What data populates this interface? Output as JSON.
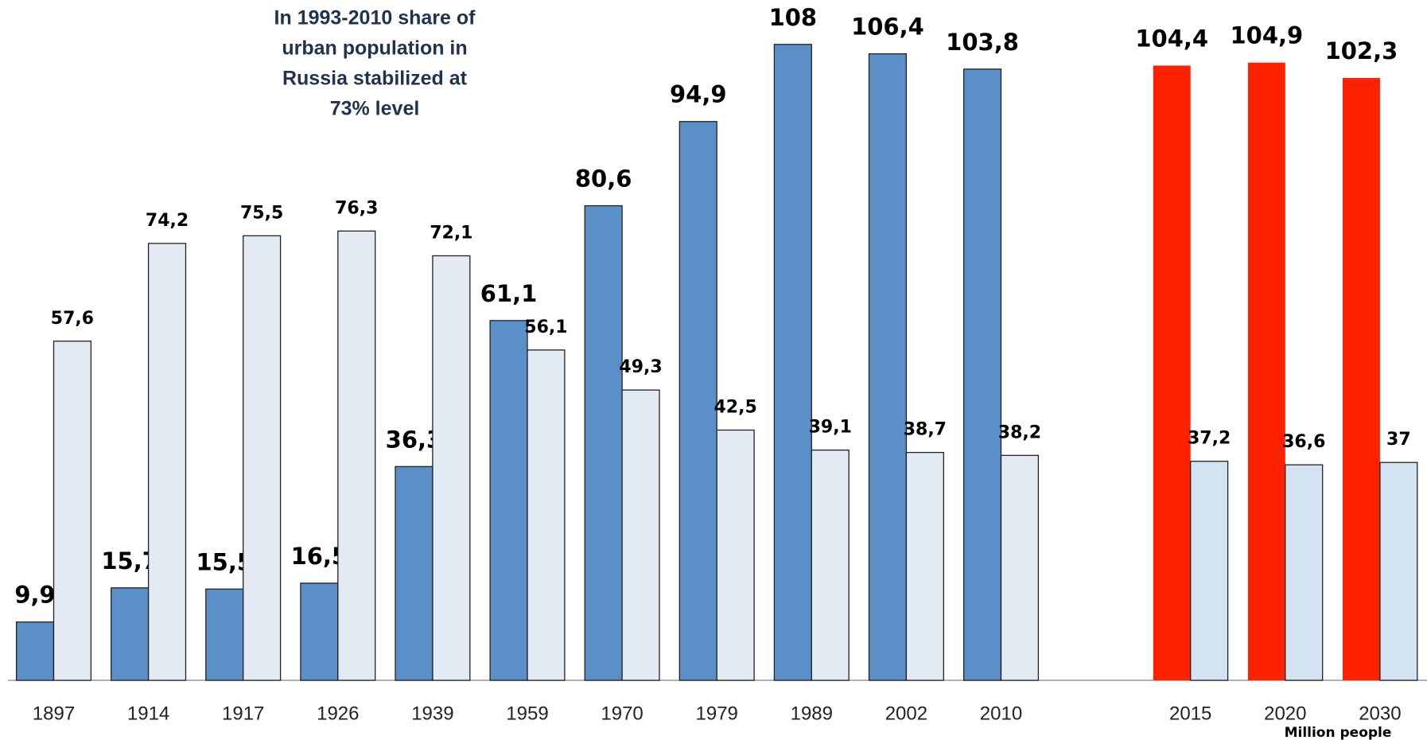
{
  "chart_data": {
    "type": "bar",
    "annotation": [
      "In 1993-2010 share of",
      "urban population in",
      "Russia stabilized at",
      "73% level"
    ],
    "unit_label": "Million people",
    "categories": [
      "1897",
      "1914",
      "1917",
      "1926",
      "1939",
      "1959",
      "1970",
      "1979",
      "1989",
      "2002",
      "2010",
      null,
      "2015",
      "2020",
      "2030"
    ],
    "series": [
      {
        "colors": [
          "#5b8fc7",
          "#5b8fc7",
          "#5b8fc7",
          "#5b8fc7",
          "#5b8fc7",
          "#5b8fc7",
          "#5b8fc7",
          "#5b8fc7",
          "#5b8fc7",
          "#5b8fc7",
          "#5b8fc7",
          null,
          "#ff2200",
          "#ff2200",
          "#ff2200"
        ],
        "values": [
          9.9,
          15.7,
          15.5,
          16.5,
          36.3,
          61.1,
          80.6,
          94.9,
          108,
          106.4,
          103.8,
          null,
          104.4,
          104.9,
          102.3
        ],
        "value_labels": [
          "9,9",
          "15,7",
          "15,5",
          "16,5",
          "36,3",
          "61,1",
          "80,6",
          "94,9",
          "108",
          "106,4",
          "103,8",
          null,
          "104,4",
          "104,9",
          "102,3"
        ]
      },
      {
        "colors": [
          "#e3eaf4",
          "#e3eaf4",
          "#e3eaf4",
          "#e3eaf4",
          "#e3eaf4",
          "#e3eaf4",
          "#e3eaf4",
          "#e3eaf4",
          "#e3eaf4",
          "#e3eaf4",
          "#e3eaf4",
          null,
          "#d3e3f2",
          "#d3e3f2",
          "#d3e3f2"
        ],
        "values": [
          57.6,
          74.2,
          75.5,
          76.3,
          72.1,
          56.1,
          49.3,
          42.5,
          39.1,
          38.7,
          38.2,
          null,
          37.2,
          36.6,
          37
        ],
        "value_labels": [
          "57,6",
          "74,2",
          "75,5",
          "76,3",
          "72,1",
          "56,1",
          "49,3",
          "42,5",
          "39,1",
          "38,7",
          "38,2",
          null,
          "37,2",
          "36,6",
          "37"
        ]
      }
    ]
  }
}
